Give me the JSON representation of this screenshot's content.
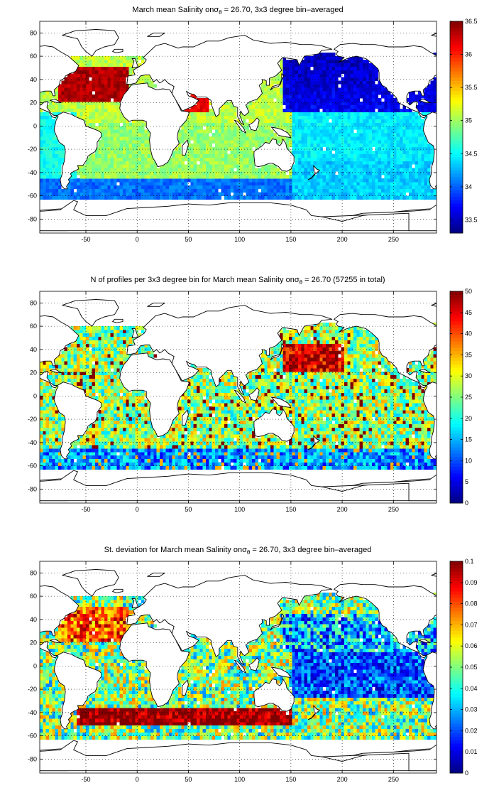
{
  "chart_data": [
    {
      "type": "heatmap",
      "title": "March mean Salinity on σθ = 26.70, 3x3 degree bin–averaged",
      "title_parts": {
        "pre": "March mean Salinity on",
        "sym": "σ",
        "sub": "θ",
        "post": " = 26.70, 3x3 degree bin–averaged"
      },
      "xlim": [
        -95,
        292
      ],
      "ylim": [
        -92,
        90
      ],
      "xticks": [
        "-50",
        "0",
        "50",
        "100",
        "150",
        "200",
        "250"
      ],
      "yticks": [
        "80",
        "60",
        "40",
        "20",
        "0",
        "-20",
        "-40",
        "-60",
        "-80"
      ],
      "colorbar": {
        "min": 33.3,
        "max": 36.5,
        "ticks": [
          "36.5",
          "36",
          "35.5",
          "35",
          "34.5",
          "34",
          "33.5"
        ]
      },
      "grid": true,
      "colormap": "jet",
      "field": "salinity"
    },
    {
      "type": "heatmap",
      "title": "N of profiles per 3x3 degree bin for March mean Salinity on σθ = 26.70 (57255 in total)",
      "title_parts": {
        "pre": "N of profiles per 3x3 degree bin for March mean Salinity on",
        "sym": "σ",
        "sub": "θ",
        "post": " = 26.70 (57255 in total)"
      },
      "xlim": [
        -95,
        292
      ],
      "ylim": [
        -92,
        90
      ],
      "xticks": [
        "-50",
        "0",
        "50",
        "100",
        "150",
        "200",
        "250"
      ],
      "yticks": [
        "80",
        "60",
        "40",
        "20",
        "0",
        "-20",
        "-40",
        "-60",
        "-80"
      ],
      "colorbar": {
        "min": 0,
        "max": 50,
        "ticks": [
          "50",
          "45",
          "40",
          "35",
          "30",
          "25",
          "20",
          "15",
          "10",
          "5",
          "0"
        ]
      },
      "total_profiles": 57255,
      "grid": true,
      "colormap": "jet",
      "field": "count"
    },
    {
      "type": "heatmap",
      "title": "St. deviation for March mean Salinity on σθ = 26.70, 3x3 degree bin–averaged",
      "title_parts": {
        "pre": "St. deviation for March mean Salinity on",
        "sym": "σ",
        "sub": "θ",
        "post": " = 26.70, 3x3 degree bin–averaged"
      },
      "xlim": [
        -95,
        292
      ],
      "ylim": [
        -92,
        90
      ],
      "xticks": [
        "-50",
        "0",
        "50",
        "100",
        "150",
        "200",
        "250"
      ],
      "yticks": [
        "80",
        "60",
        "40",
        "20",
        "0",
        "-20",
        "-40",
        "-60",
        "-80"
      ],
      "colorbar": {
        "min": 0,
        "max": 0.1,
        "ticks": [
          "0.1",
          "0.09",
          "0.08",
          "0.07",
          "0.06",
          "0.05",
          "0.04",
          "0.03",
          "0.02",
          "0.01",
          "0"
        ]
      },
      "grid": true,
      "colormap": "jet",
      "field": "stdev"
    }
  ]
}
